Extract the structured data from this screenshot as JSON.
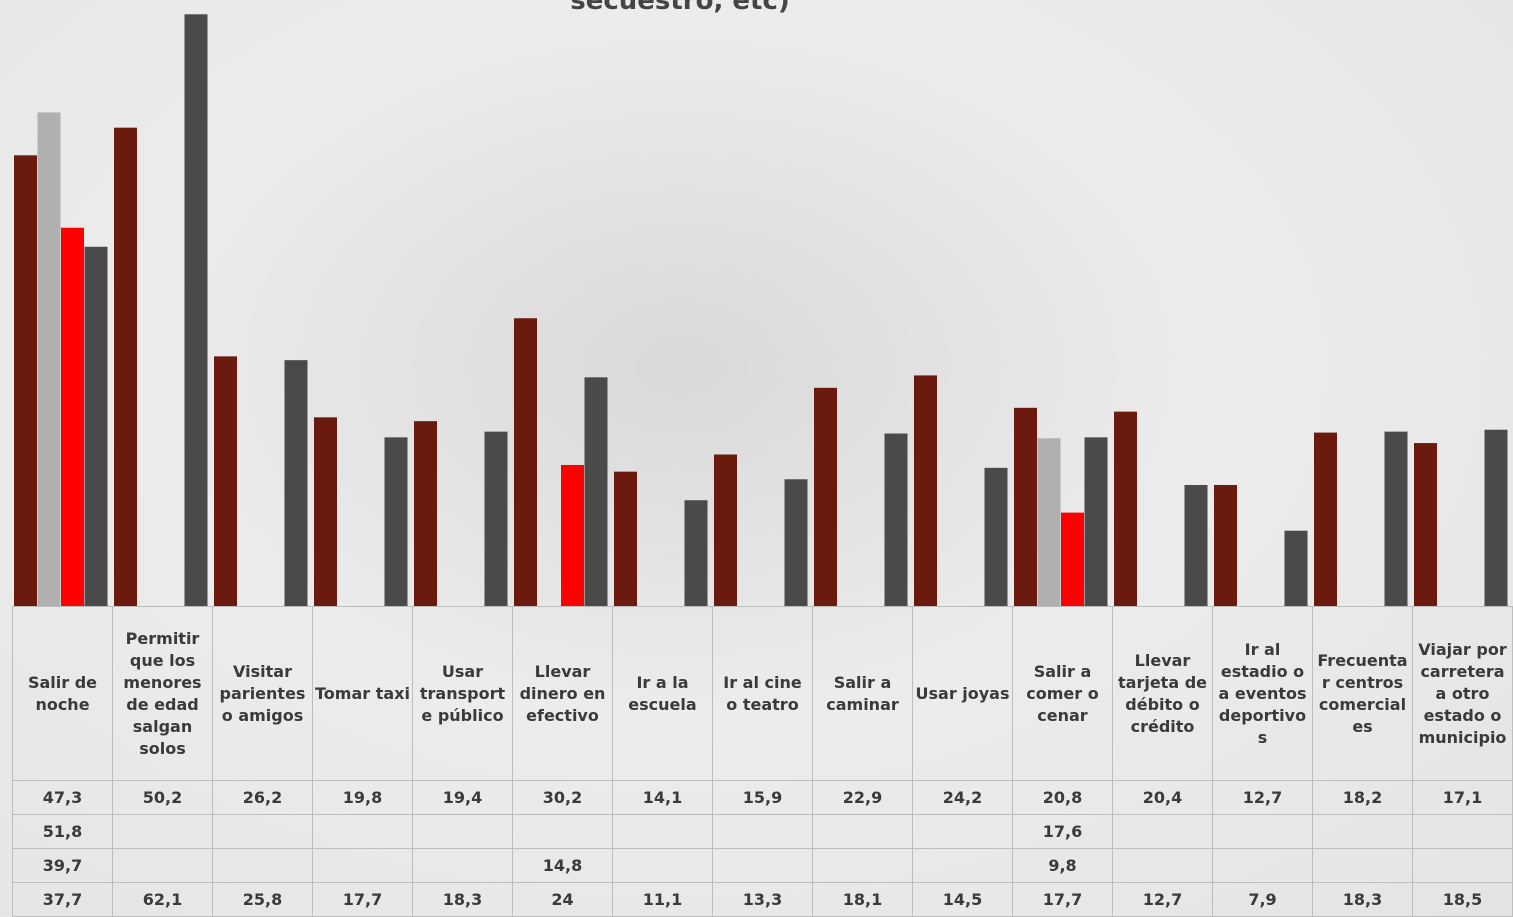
{
  "chart_data": {
    "type": "bar",
    "title": "secuestro, etc)",
    "categories": [
      "Salir de noche",
      "Permitir que los menores de edad salgan solos",
      "Visitar parientes o amigos",
      "Tomar taxi",
      "Usar transporte público",
      "Llevar dinero en efectivo",
      "Ir a la escuela",
      "Ir al cine o teatro",
      "Salir a caminar",
      "Usar joyas",
      "Salir a comer o cenar",
      "Llevar tarjeta de débito o crédito",
      "Ir al estadio o a eventos deportivos",
      "Frecuentar centros comerciales",
      "Viajar por carretera a otro estado o municipio"
    ],
    "ylim": [
      0,
      63.6
    ],
    "series": [
      {
        "color": "#6b1a0e",
        "values": [
          47.3,
          50.2,
          26.2,
          19.8,
          19.4,
          30.2,
          14.1,
          15.9,
          22.9,
          24.2,
          20.8,
          20.4,
          12.7,
          18.2,
          17.1
        ],
        "value_labels": [
          "47,3",
          "50,2",
          "26,2",
          "19,8",
          "19,4",
          "30,2",
          "14,1",
          "15,9",
          "22,9",
          "24,2",
          "20,8",
          "20,4",
          "12,7",
          "18,2",
          "17,1"
        ]
      },
      {
        "color": "#b0b0b0",
        "values": [
          51.8,
          null,
          null,
          null,
          null,
          null,
          null,
          null,
          null,
          null,
          17.6,
          null,
          null,
          null,
          null
        ],
        "value_labels": [
          "51,8",
          null,
          null,
          null,
          null,
          null,
          null,
          null,
          null,
          null,
          "17,6",
          null,
          null,
          null,
          null
        ]
      },
      {
        "color": "#ff0000",
        "values": [
          39.7,
          null,
          null,
          null,
          null,
          14.8,
          null,
          null,
          null,
          null,
          9.8,
          null,
          null,
          null,
          null
        ],
        "value_labels": [
          "39,7",
          null,
          null,
          null,
          null,
          "14,8",
          null,
          null,
          null,
          null,
          "9,8",
          null,
          null,
          null,
          null
        ]
      },
      {
        "color": "#4a4a4a",
        "values": [
          37.7,
          62.1,
          25.8,
          17.7,
          18.3,
          24,
          11.1,
          13.3,
          18.1,
          14.5,
          17.7,
          12.7,
          7.9,
          18.3,
          18.5
        ],
        "value_labels": [
          "37,7",
          "62,1",
          "25,8",
          "17,7",
          "18,3",
          "24",
          "11,1",
          "13,3",
          "18,1",
          "14,5",
          "17,7",
          "12,7",
          "7,9",
          "18,3",
          "18,5"
        ]
      }
    ]
  }
}
